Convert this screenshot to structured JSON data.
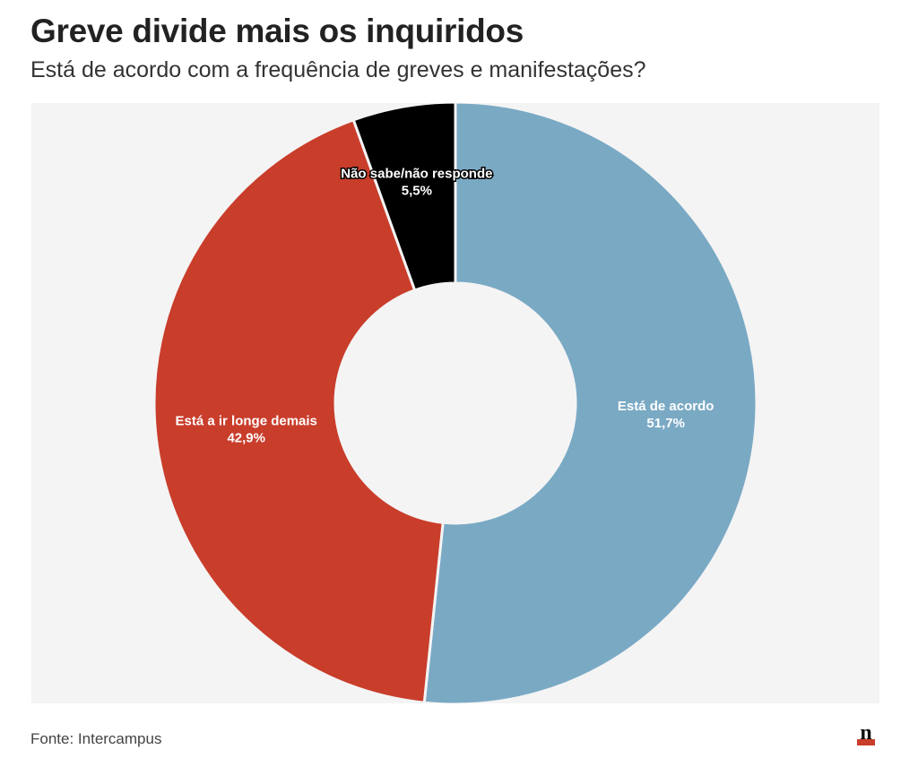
{
  "header": {
    "title": "Greve divide mais os inquiridos",
    "subtitle": "Está de acordo com a frequência de greves e manifestações?"
  },
  "footer": {
    "source": "Fonte: Intercampus",
    "logo_letter": "n"
  },
  "chart_data": {
    "type": "pie",
    "variant": "donut",
    "title": "Greve divide mais os inquiridos",
    "subtitle": "Está de acordo com a frequência de greves e manifestações?",
    "slices": [
      {
        "name": "Está de acordo",
        "value": 51.7,
        "label": "51,7%",
        "color": "#7aa9c4",
        "text_color": "#ffffff"
      },
      {
        "name": "Está a ir longe demais",
        "value": 42.9,
        "label": "42,9%",
        "color": "#c93d2b",
        "text_color": "#ffffff"
      },
      {
        "name": "Não sabe/não responde",
        "value": 5.5,
        "label": "5,5%",
        "color": "#000000",
        "text_color": "#ffffff"
      }
    ],
    "start_angle_deg": 0,
    "direction": "clockwise",
    "background_color": "#f4f4f4"
  }
}
